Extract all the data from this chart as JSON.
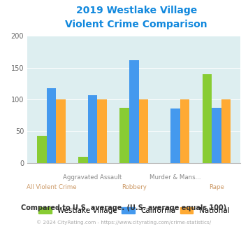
{
  "title_line1": "2019 Westlake Village",
  "title_line2": "Violent Crime Comparison",
  "westlake_village": [
    43,
    10,
    87,
    0,
    140
  ],
  "california": [
    117,
    107,
    162,
    86,
    87
  ],
  "national": [
    100,
    100,
    100,
    100,
    100
  ],
  "colors": {
    "westlake": "#88cc33",
    "california": "#4499ee",
    "national": "#ffaa33"
  },
  "ylim": [
    0,
    200
  ],
  "yticks": [
    0,
    50,
    100,
    150,
    200
  ],
  "background_color": "#ddeef0",
  "title_color": "#1188dd",
  "footer_text": "Compared to U.S. average. (U.S. average equals 100)",
  "copyright_text": "© 2024 CityRating.com - https://www.cityrating.com/crime-statistics/",
  "footer_color": "#333333",
  "copyright_color": "#aaaaaa",
  "bar_width": 0.23,
  "top_label_color": "#888888",
  "bottom_label_color": "#cc9966"
}
